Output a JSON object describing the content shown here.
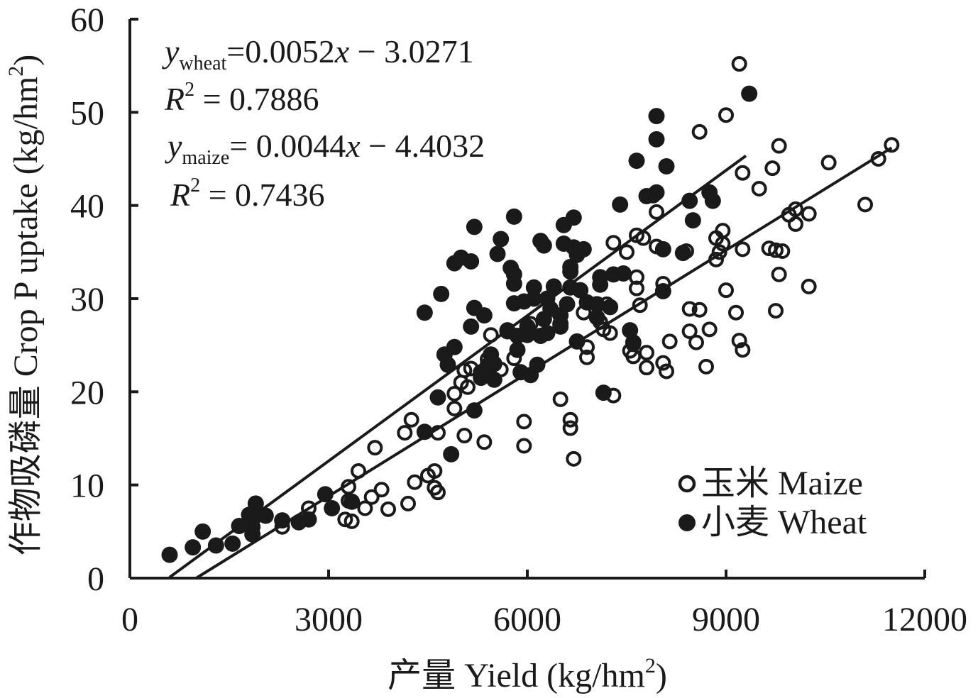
{
  "chart_data": {
    "type": "scatter",
    "title": "",
    "xlabel": "产量 Yield (kg/hm",
    "xlabel_sup": "2",
    "xlabel_end": ")",
    "ylabel": "作物吸磷量  Crop P uptake (kg/hm",
    "ylabel_sup": "2",
    "ylabel_end": ")",
    "xlim": [
      0,
      12000
    ],
    "ylim": [
      0,
      60
    ],
    "xticks": [
      0,
      3000,
      6000,
      9000,
      12000
    ],
    "yticks": [
      0,
      10,
      20,
      30,
      40,
      50,
      60
    ],
    "xtick_labels": [
      "0",
      "3000",
      "6000",
      "9000",
      "12000"
    ],
    "ytick_labels": [
      "0",
      "10",
      "20",
      "30",
      "40",
      "50",
      "60"
    ],
    "legend": [
      {
        "label": "玉米 Maize",
        "marker": "open-circle"
      },
      {
        "label": "小麦 Wheat",
        "marker": "filled-circle"
      }
    ],
    "legend_position": "bottom-right",
    "annotations": {
      "wheat_eq_var": "y",
      "wheat_eq_sub": "wheat",
      "wheat_eq_rest": "=0.0052",
      "wheat_eq_x": "x",
      "wheat_eq_tail": " − 3.0271",
      "wheat_r2_var": "R",
      "wheat_r2_sup": "2",
      "wheat_r2_rest": " = 0.7886",
      "maize_eq_var": "y",
      "maize_eq_sub": "maize",
      "maize_eq_rest": "= 0.0044",
      "maize_eq_x": "x",
      "maize_eq_tail": " − 4.4032",
      "maize_r2_var": "R",
      "maize_r2_sup": "2",
      "maize_r2_rest": " = 0.7436"
    },
    "regression_lines": [
      {
        "name": "Wheat",
        "slope": 0.0052,
        "intercept": -3.0271,
        "x_range": [
          600,
          9300
        ]
      },
      {
        "name": "Maize",
        "slope": 0.0044,
        "intercept": -4.4032,
        "x_range": [
          620,
          11500
        ]
      }
    ],
    "series": [
      {
        "name": "Maize",
        "marker": "open",
        "points": [
          [
            2300,
            5.5
          ],
          [
            2700,
            7.5
          ],
          [
            3250,
            6.3
          ],
          [
            3300,
            8.3
          ],
          [
            3300,
            9.8
          ],
          [
            3350,
            6.1
          ],
          [
            3450,
            11.5
          ],
          [
            3550,
            7.5
          ],
          [
            3650,
            8.7
          ],
          [
            3700,
            14
          ],
          [
            3800,
            9.5
          ],
          [
            3900,
            7.4
          ],
          [
            4200,
            8
          ],
          [
            4300,
            10.3
          ],
          [
            4250,
            17
          ],
          [
            4150,
            15.6
          ],
          [
            4500,
            11
          ],
          [
            4600,
            11.5
          ],
          [
            4600,
            9.7
          ],
          [
            4650,
            9.2
          ],
          [
            4650,
            15.6
          ],
          [
            4900,
            19.8
          ],
          [
            4900,
            18.2
          ],
          [
            5000,
            21
          ],
          [
            5050,
            22.3
          ],
          [
            5100,
            20.5
          ],
          [
            5150,
            22.5
          ],
          [
            5050,
            15.3
          ],
          [
            5350,
            14.6
          ],
          [
            5450,
            26.1
          ],
          [
            5400,
            23.5
          ],
          [
            5600,
            22.4
          ],
          [
            5800,
            23.6
          ],
          [
            5950,
            16.8
          ],
          [
            5950,
            14.2
          ],
          [
            6050,
            27.3
          ],
          [
            6500,
            19.2
          ],
          [
            6650,
            17
          ],
          [
            6650,
            16.1
          ],
          [
            6700,
            12.8
          ],
          [
            6850,
            28.5
          ],
          [
            6900,
            24.8
          ],
          [
            6900,
            23.7
          ],
          [
            7100,
            27.5
          ],
          [
            7150,
            26.7
          ],
          [
            7200,
            29.4
          ],
          [
            7250,
            26.3
          ],
          [
            7300,
            19.6
          ],
          [
            7300,
            36
          ],
          [
            7500,
            35
          ],
          [
            7550,
            24.4
          ],
          [
            7600,
            25.1
          ],
          [
            7600,
            23.8
          ],
          [
            7650,
            32.3
          ],
          [
            7650,
            31.1
          ],
          [
            7700,
            29.3
          ],
          [
            7650,
            36.8
          ],
          [
            7750,
            36.5
          ],
          [
            7800,
            24.2
          ],
          [
            7800,
            22.6
          ],
          [
            7950,
            35.6
          ],
          [
            7950,
            39.3
          ],
          [
            8050,
            31.6
          ],
          [
            8050,
            23.1
          ],
          [
            8100,
            22.2
          ],
          [
            8150,
            25.4
          ],
          [
            8400,
            35.1
          ],
          [
            8450,
            28.9
          ],
          [
            8450,
            26.5
          ],
          [
            8550,
            25.3
          ],
          [
            8600,
            47.9
          ],
          [
            8600,
            28.8
          ],
          [
            8700,
            22.7
          ],
          [
            8750,
            26.7
          ],
          [
            8850,
            36.5
          ],
          [
            8850,
            34.2
          ],
          [
            8900,
            35
          ],
          [
            8950,
            37.3
          ],
          [
            8950,
            35.9
          ],
          [
            9000,
            30.9
          ],
          [
            9000,
            49.7
          ],
          [
            9150,
            28.5
          ],
          [
            9200,
            25.5
          ],
          [
            9250,
            43.5
          ],
          [
            9250,
            35.3
          ],
          [
            9250,
            24.5
          ],
          [
            9200,
            55.2
          ],
          [
            9500,
            41.8
          ],
          [
            9650,
            35.4
          ],
          [
            9700,
            44
          ],
          [
            9750,
            28.7
          ],
          [
            9750,
            35.2
          ],
          [
            9800,
            46.4
          ],
          [
            9800,
            32.6
          ],
          [
            9850,
            35.1
          ],
          [
            9950,
            39
          ],
          [
            10050,
            39.6
          ],
          [
            10050,
            38
          ],
          [
            10250,
            39.1
          ],
          [
            10250,
            31.3
          ],
          [
            10550,
            44.6
          ],
          [
            11100,
            40.1
          ],
          [
            11300,
            45
          ],
          [
            11500,
            46.5
          ]
        ]
      },
      {
        "name": "Wheat",
        "marker": "filled",
        "points": [
          [
            600,
            2.5
          ],
          [
            950,
            3.3
          ],
          [
            1100,
            5
          ],
          [
            1300,
            3.5
          ],
          [
            1550,
            3.7
          ],
          [
            1650,
            5.6
          ],
          [
            1800,
            6.8
          ],
          [
            1850,
            5.5
          ],
          [
            1850,
            4.7
          ],
          [
            1900,
            6.7
          ],
          [
            1900,
            8
          ],
          [
            2050,
            6.7
          ],
          [
            2300,
            6.2
          ],
          [
            2550,
            6
          ],
          [
            2700,
            6.3
          ],
          [
            2950,
            9
          ],
          [
            3050,
            7.5
          ],
          [
            3350,
            8.2
          ],
          [
            4450,
            28.5
          ],
          [
            4450,
            15.7
          ],
          [
            4650,
            19.4
          ],
          [
            4700,
            30.5
          ],
          [
            4750,
            24
          ],
          [
            4800,
            22.9
          ],
          [
            4850,
            13.3
          ],
          [
            4900,
            24.8
          ],
          [
            4900,
            33.8
          ],
          [
            5000,
            34.4
          ],
          [
            5150,
            34
          ],
          [
            5150,
            27
          ],
          [
            5200,
            29
          ],
          [
            5200,
            37.7
          ],
          [
            5200,
            18
          ],
          [
            5300,
            22.1
          ],
          [
            5300,
            21.5
          ],
          [
            5350,
            28.2
          ],
          [
            5400,
            22.8
          ],
          [
            5450,
            24
          ],
          [
            5500,
            21.3
          ],
          [
            5500,
            23
          ],
          [
            5550,
            34.8
          ],
          [
            5600,
            36.4
          ],
          [
            5700,
            26.5
          ],
          [
            5700,
            26.6
          ],
          [
            5750,
            33.3
          ],
          [
            5800,
            38.8
          ],
          [
            5800,
            31.6
          ],
          [
            5800,
            29.5
          ],
          [
            5800,
            32.6
          ],
          [
            5850,
            24.5
          ],
          [
            5850,
            26
          ],
          [
            5900,
            22.1
          ],
          [
            5950,
            29.7
          ],
          [
            6000,
            27
          ],
          [
            6000,
            26.1
          ],
          [
            6050,
            21.8
          ],
          [
            6100,
            31.2
          ],
          [
            6100,
            30
          ],
          [
            6150,
            22.9
          ],
          [
            6200,
            36.2
          ],
          [
            6250,
            35.7
          ],
          [
            6200,
            26
          ],
          [
            6250,
            27.8
          ],
          [
            6300,
            30
          ],
          [
            6300,
            26.3
          ],
          [
            6350,
            28.9
          ],
          [
            6400,
            31.3
          ],
          [
            6500,
            27
          ],
          [
            6500,
            28.2
          ],
          [
            6500,
            27.3
          ],
          [
            6550,
            35.9
          ],
          [
            6550,
            37.9
          ],
          [
            6600,
            29.4
          ],
          [
            6650,
            31.2
          ],
          [
            6650,
            33.4
          ],
          [
            6650,
            32.9
          ],
          [
            6700,
            38.7
          ],
          [
            6700,
            35.5
          ],
          [
            6750,
            34.7
          ],
          [
            6750,
            25.4
          ],
          [
            6800,
            30.9
          ],
          [
            6850,
            35.3
          ],
          [
            6900,
            29.6
          ],
          [
            7050,
            29.4
          ],
          [
            7050,
            28
          ],
          [
            7100,
            32.3
          ],
          [
            7100,
            31.5
          ],
          [
            7150,
            19.9
          ],
          [
            7250,
            29.1
          ],
          [
            7300,
            32.6
          ],
          [
            7400,
            40.1
          ],
          [
            7450,
            32.7
          ],
          [
            7550,
            26.6
          ],
          [
            7600,
            25.3
          ],
          [
            7650,
            44.8
          ],
          [
            7800,
            41
          ],
          [
            7900,
            41.1
          ],
          [
            7950,
            41.4
          ],
          [
            7950,
            47.1
          ],
          [
            7950,
            49.6
          ],
          [
            8050,
            30.8
          ],
          [
            8050,
            35.3
          ],
          [
            8100,
            44.2
          ],
          [
            8350,
            34.9
          ],
          [
            8450,
            40.5
          ],
          [
            8500,
            38.4
          ],
          [
            8750,
            41.4
          ],
          [
            8800,
            40.5
          ],
          [
            9350,
            52
          ]
        ]
      }
    ]
  }
}
